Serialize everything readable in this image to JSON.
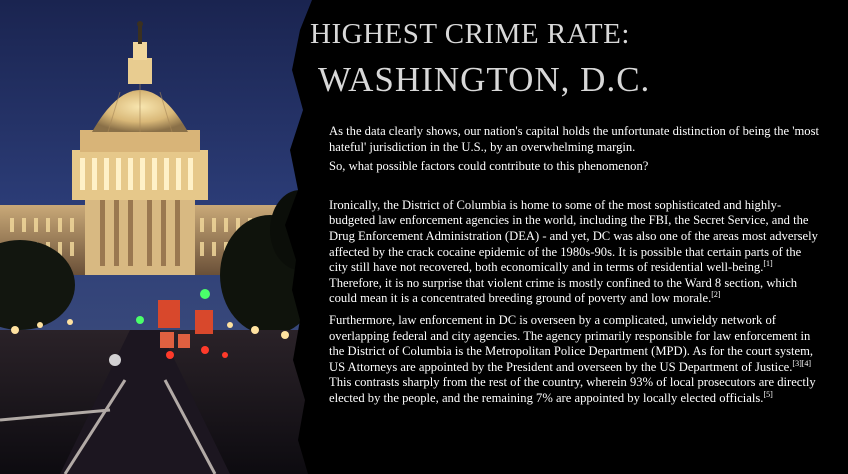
{
  "header": {
    "title_line1": "HIGHEST CRIME RATE:",
    "title_line2": "WASHINGTON, D.C."
  },
  "photo": {
    "subject": "capitol-dome-night"
  },
  "body": {
    "p1": "As the data clearly shows, our nation's capital holds the unfortunate distinction of being the 'most hateful' jurisdiction in the U.S., by an overwhelming margin.",
    "p2": "So, what possible factors could contribute to this phenomenon?",
    "p3_part1": "Ironically, the District of Columbia is home to some of the most sophisticated and highly-budgeted law enforcement agencies in the world, including the FBI, the Secret Service, and the Drug Enforcement Administration (DEA) - and yet, DC was also one of the areas most adversely affected by the crack cocaine epidemic of the 1980s-90s. It is possible that certain parts of the city still have not recovered, both economically and in terms of residential well-being.",
    "p3_ref1": "[1]",
    "p3_part2": " Therefore, it is no surprise that violent crime is mostly confined to the Ward 8 section, which could mean it is a concentrated breeding ground of poverty and low morale.",
    "p3_ref2": "[2]",
    "p4_part1": "Furthermore, law enforcement in DC is overseen by a complicated, unwieldy network of overlapping federal and city agencies. The agency primarily responsible for law enforcement in the District of Columbia is the Metropolitan Police Department (MPD). As for the court system, US Attorneys are appointed by the President and overseen by the US Department of Justice.",
    "p4_ref1": "[3][4]",
    "p4_part2": " This contrasts sharply from the rest of the country, wherein 93% of local prosecutors are directly elected by the people, and the remaining 7% are appointed by locally elected officials.",
    "p4_ref2": "[5]"
  }
}
